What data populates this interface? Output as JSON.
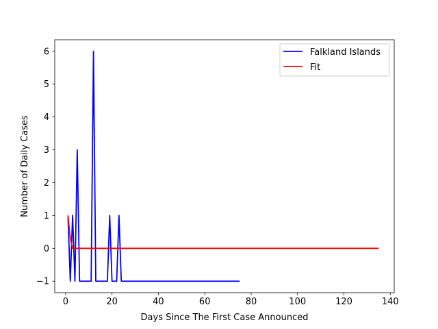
{
  "chart_data": {
    "type": "line",
    "title": "",
    "xlabel": "Days Since The First Case Announced",
    "ylabel": "Number of Daily Cases",
    "xlim": [
      -4.7,
      141.7
    ],
    "ylim": [
      -1.35,
      6.35
    ],
    "x_ticks": [
      0,
      20,
      40,
      60,
      80,
      100,
      120,
      140
    ],
    "y_ticks": [
      -1,
      0,
      1,
      2,
      3,
      4,
      5,
      6
    ],
    "grid": false,
    "legend": {
      "placement": "top-right"
    },
    "series": [
      {
        "name": "Falkland Islands",
        "color": "#0000ff",
        "x": [
          1,
          2,
          3,
          4,
          5,
          6,
          7,
          8,
          9,
          10,
          11,
          12,
          13,
          14,
          15,
          16,
          17,
          18,
          19,
          20,
          21,
          22,
          23,
          24,
          75
        ],
        "y": [
          1,
          -1,
          1,
          -1,
          3,
          -1,
          -1,
          -1,
          -1,
          -1,
          -1,
          6,
          -1,
          -1,
          -1,
          -1,
          -1,
          -1,
          1,
          -1,
          -1,
          -1,
          1,
          -1,
          -1
        ]
      },
      {
        "name": "Fit",
        "color": "#ff0000",
        "x": [
          1,
          2,
          3,
          135
        ],
        "y": [
          1,
          0.3,
          0,
          0
        ]
      }
    ]
  }
}
